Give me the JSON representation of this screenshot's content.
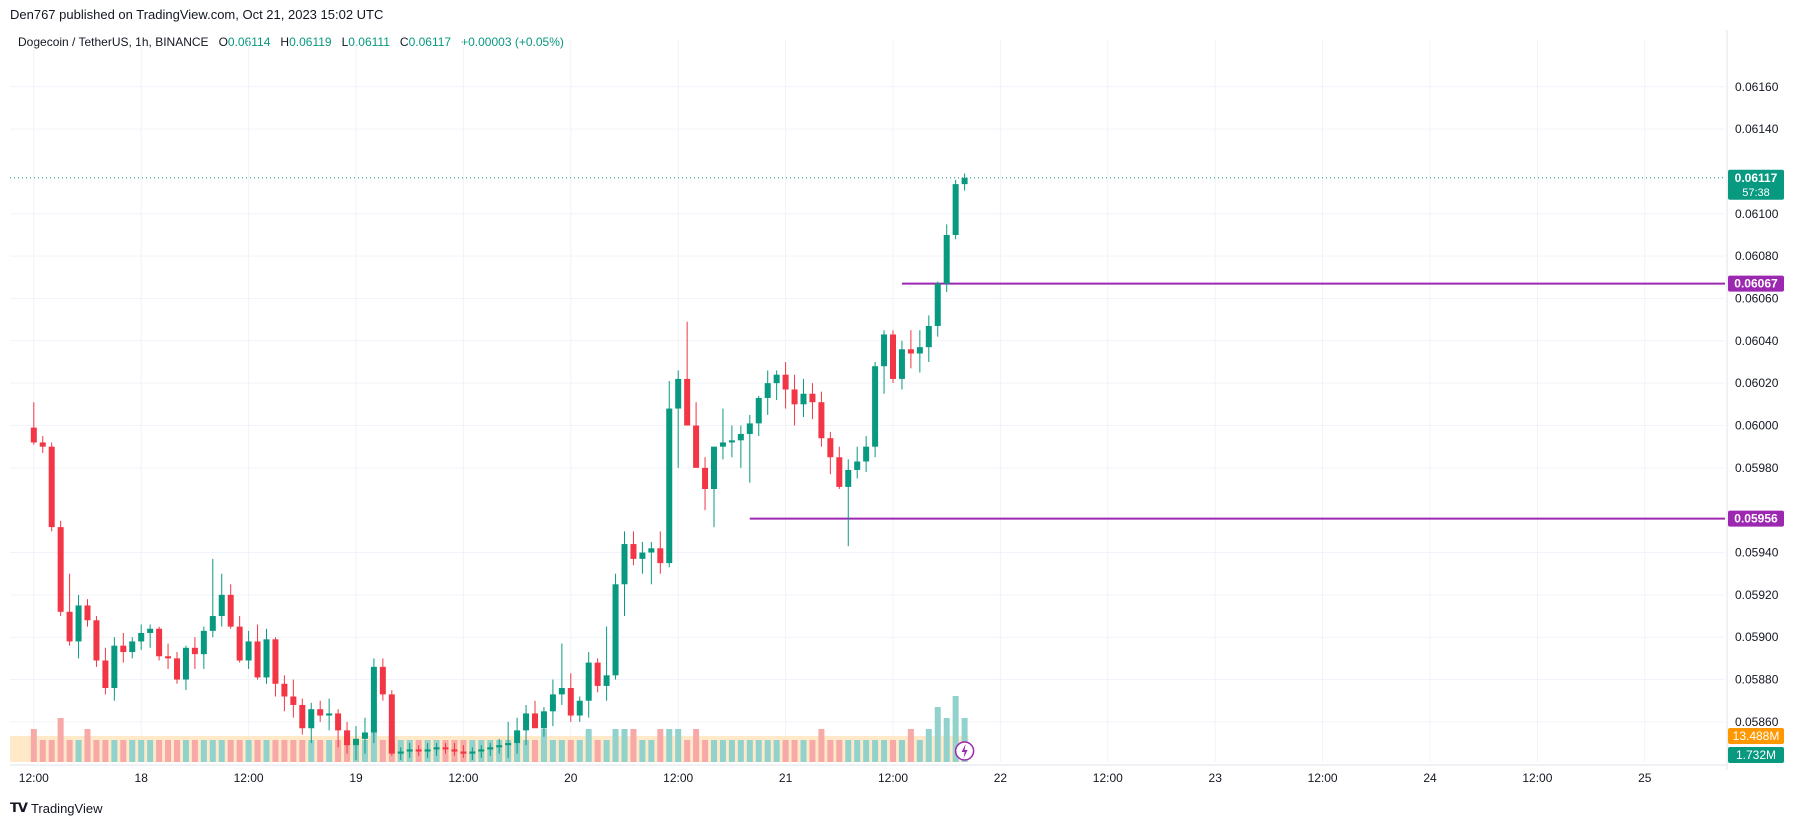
{
  "header": {
    "published": "Den767 published on TradingView.com, Oct 21, 2023 15:02 UTC"
  },
  "legend": {
    "symbol": "Dogecoin / TetherUS, 1h, BINANCE",
    "o_label": "O",
    "o_value": "0.06114",
    "h_label": "H",
    "h_value": "0.06119",
    "l_label": "L",
    "l_value": "0.06111",
    "c_label": "C",
    "c_value": "0.06117",
    "change": "+0.00003 (+0.05%)"
  },
  "footer": {
    "brand": "TradingView"
  },
  "colors": {
    "up": "#089981",
    "down": "#f23645",
    "up_vol": "#92d2cc",
    "down_vol": "#f7a9a7",
    "level": "#9c27b0",
    "grid": "#f0f3fa",
    "axis_text": "#131722",
    "vol_ma": "#ff9800",
    "last_price_bg": "#089981"
  },
  "chart_data": {
    "type": "candlestick",
    "title": "Dogecoin / TetherUS, 1h, BINANCE",
    "y_range": [
      0.05842,
      0.06175
    ],
    "y_ticks": [
      "0.06160",
      "0.06140",
      "0.06100",
      "0.06080",
      "0.06060",
      "0.06040",
      "0.06020",
      "0.06000",
      "0.05980",
      "0.05940",
      "0.05920",
      "0.05900",
      "0.05880",
      "0.05860"
    ],
    "y_tick_values": [
      0.0616,
      0.0614,
      0.061,
      0.0608,
      0.0606,
      0.0604,
      0.0602,
      0.06,
      0.0598,
      0.0594,
      0.0592,
      0.059,
      0.0588,
      0.0586
    ],
    "x_range_hours": [
      0,
      240
    ],
    "x_ticks": [
      {
        "label": "12:00",
        "h": 12
      },
      {
        "label": "18",
        "h": 24
      },
      {
        "label": "12:00",
        "h": 36
      },
      {
        "label": "19",
        "h": 48
      },
      {
        "label": "12:00",
        "h": 60
      },
      {
        "label": "20",
        "h": 72
      },
      {
        "label": "12:00",
        "h": 84
      },
      {
        "label": "21",
        "h": 96
      },
      {
        "label": "12:00",
        "h": 108
      },
      {
        "label": "22",
        "h": 120
      },
      {
        "label": "12:00",
        "h": 132
      },
      {
        "label": "23",
        "h": 144
      },
      {
        "label": "12:00",
        "h": 156
      },
      {
        "label": "24",
        "h": 168
      },
      {
        "label": "12:00",
        "h": 180
      },
      {
        "label": "25",
        "h": 192
      }
    ],
    "first_candle_hour": 12.0,
    "candles": [
      [
        0.05999,
        0.06011,
        0.05991,
        0.05992
      ],
      [
        0.05992,
        0.05995,
        0.05987,
        0.0599
      ],
      [
        0.0599,
        0.05992,
        0.0595,
        0.05952
      ],
      [
        0.05952,
        0.05955,
        0.0591,
        0.05912
      ],
      [
        0.05912,
        0.0593,
        0.05896,
        0.05898
      ],
      [
        0.05898,
        0.0592,
        0.0589,
        0.05915
      ],
      [
        0.05915,
        0.05918,
        0.05905,
        0.05908
      ],
      [
        0.05908,
        0.0591,
        0.05886,
        0.05889
      ],
      [
        0.05889,
        0.05895,
        0.05873,
        0.05876
      ],
      [
        0.05876,
        0.059,
        0.0587,
        0.05896
      ],
      [
        0.05896,
        0.05902,
        0.05888,
        0.05893
      ],
      [
        0.05893,
        0.059,
        0.0589,
        0.05898
      ],
      [
        0.05898,
        0.05906,
        0.05894,
        0.05902
      ],
      [
        0.05902,
        0.05906,
        0.05895,
        0.05904
      ],
      [
        0.05904,
        0.05905,
        0.05889,
        0.05891
      ],
      [
        0.05891,
        0.05897,
        0.05885,
        0.0589
      ],
      [
        0.0589,
        0.05893,
        0.05878,
        0.0588
      ],
      [
        0.0588,
        0.05896,
        0.05875,
        0.05895
      ],
      [
        0.05895,
        0.059,
        0.05885,
        0.05892
      ],
      [
        0.05892,
        0.05905,
        0.05885,
        0.05903
      ],
      [
        0.05903,
        0.05937,
        0.059,
        0.0591
      ],
      [
        0.0591,
        0.0593,
        0.05905,
        0.0592
      ],
      [
        0.0592,
        0.05925,
        0.05904,
        0.05905
      ],
      [
        0.05905,
        0.0591,
        0.05888,
        0.05889
      ],
      [
        0.05889,
        0.05903,
        0.05885,
        0.05898
      ],
      [
        0.05898,
        0.05906,
        0.0588,
        0.05881
      ],
      [
        0.05881,
        0.05904,
        0.05878,
        0.05899
      ],
      [
        0.05899,
        0.059,
        0.05872,
        0.05878
      ],
      [
        0.05878,
        0.05882,
        0.05865,
        0.05872
      ],
      [
        0.05872,
        0.0588,
        0.05862,
        0.05868
      ],
      [
        0.05868,
        0.05871,
        0.05854,
        0.05857
      ],
      [
        0.05857,
        0.05869,
        0.0585,
        0.05866
      ],
      [
        0.05866,
        0.0587,
        0.0586,
        0.05863
      ],
      [
        0.05863,
        0.05871,
        0.05856,
        0.05864
      ],
      [
        0.05864,
        0.05866,
        0.05848,
        0.05856
      ],
      [
        0.05856,
        0.0586,
        0.05845,
        0.05849
      ],
      [
        0.05849,
        0.05858,
        0.05842,
        0.05852
      ],
      [
        0.05852,
        0.05862,
        0.05845,
        0.05855
      ],
      [
        0.05855,
        0.0589,
        0.0585,
        0.05886
      ],
      [
        0.05886,
        0.0589,
        0.0587,
        0.05873
      ],
      [
        0.05873,
        0.05875,
        0.05844,
        0.05845
      ],
      [
        0.05845,
        0.05848,
        0.05842,
        0.05846
      ],
      [
        0.05846,
        0.0585,
        0.05843,
        0.05847
      ],
      [
        0.05847,
        0.05849,
        0.05844,
        0.05846
      ],
      [
        0.05846,
        0.0585,
        0.05843,
        0.05847
      ],
      [
        0.05847,
        0.0585,
        0.05844,
        0.05848
      ],
      [
        0.05848,
        0.0585,
        0.05845,
        0.05847
      ],
      [
        0.05847,
        0.0585,
        0.05844,
        0.05846
      ],
      [
        0.05846,
        0.05849,
        0.05843,
        0.05845
      ],
      [
        0.05845,
        0.05848,
        0.05842,
        0.05846
      ],
      [
        0.05846,
        0.05849,
        0.05843,
        0.05847
      ],
      [
        0.05847,
        0.0585,
        0.05844,
        0.05848
      ],
      [
        0.05848,
        0.05852,
        0.05845,
        0.05849
      ],
      [
        0.05849,
        0.0586,
        0.05843,
        0.0585
      ],
      [
        0.0585,
        0.05862,
        0.05845,
        0.05856
      ],
      [
        0.05856,
        0.05868,
        0.05849,
        0.05864
      ],
      [
        0.05864,
        0.0587,
        0.05858,
        0.05857
      ],
      [
        0.05857,
        0.05867,
        0.05853,
        0.05865
      ],
      [
        0.05865,
        0.0588,
        0.05858,
        0.05873
      ],
      [
        0.05873,
        0.05897,
        0.05868,
        0.05876
      ],
      [
        0.05876,
        0.05883,
        0.0586,
        0.05863
      ],
      [
        0.05863,
        0.05872,
        0.0586,
        0.0587
      ],
      [
        0.0587,
        0.05893,
        0.05862,
        0.05888
      ],
      [
        0.05888,
        0.0589,
        0.05874,
        0.05877
      ],
      [
        0.05877,
        0.05905,
        0.0587,
        0.05882
      ],
      [
        0.05882,
        0.0593,
        0.0588,
        0.05925
      ],
      [
        0.05925,
        0.0595,
        0.0591,
        0.05944
      ],
      [
        0.05944,
        0.0595,
        0.05934,
        0.05937
      ],
      [
        0.05937,
        0.05945,
        0.0593,
        0.0594
      ],
      [
        0.0594,
        0.05945,
        0.05925,
        0.05942
      ],
      [
        0.05942,
        0.0595,
        0.0593,
        0.05935
      ],
      [
        0.05935,
        0.06021,
        0.05933,
        0.06008
      ],
      [
        0.06008,
        0.06026,
        0.0598,
        0.06022
      ],
      [
        0.06022,
        0.06049,
        0.06,
        0.06
      ],
      [
        0.06,
        0.06011,
        0.0598,
        0.0598
      ],
      [
        0.0598,
        0.05985,
        0.0596,
        0.0597
      ],
      [
        0.0597,
        0.0599,
        0.05952,
        0.0599
      ],
      [
        0.0599,
        0.06008,
        0.05984,
        0.05992
      ],
      [
        0.05992,
        0.06,
        0.05985,
        0.05993
      ],
      [
        0.05993,
        0.06,
        0.0598,
        0.05996
      ],
      [
        0.05996,
        0.06005,
        0.05973,
        0.06001
      ],
      [
        0.06001,
        0.06014,
        0.05995,
        0.06013
      ],
      [
        0.06013,
        0.06026,
        0.06005,
        0.0602
      ],
      [
        0.0602,
        0.06026,
        0.06012,
        0.06024
      ],
      [
        0.06024,
        0.0603,
        0.06008,
        0.06017
      ],
      [
        0.06017,
        0.06024,
        0.06,
        0.0601
      ],
      [
        0.0601,
        0.06022,
        0.06004,
        0.06015
      ],
      [
        0.06015,
        0.0602,
        0.06003,
        0.06011
      ],
      [
        0.06011,
        0.06016,
        0.0599,
        0.05994
      ],
      [
        0.05994,
        0.05997,
        0.05977,
        0.05985
      ],
      [
        0.05985,
        0.0599,
        0.0597,
        0.05971
      ],
      [
        0.05971,
        0.05984,
        0.05943,
        0.05979
      ],
      [
        0.05979,
        0.0599,
        0.05975,
        0.05983
      ],
      [
        0.05983,
        0.05995,
        0.05978,
        0.0599
      ],
      [
        0.0599,
        0.0603,
        0.05985,
        0.06028
      ],
      [
        0.06028,
        0.06045,
        0.06015,
        0.06043
      ],
      [
        0.06043,
        0.06045,
        0.0602,
        0.06022
      ],
      [
        0.06022,
        0.0604,
        0.06017,
        0.06036
      ],
      [
        0.06036,
        0.06045,
        0.06027,
        0.06034
      ],
      [
        0.06034,
        0.06045,
        0.06025,
        0.06037
      ],
      [
        0.06037,
        0.06052,
        0.0603,
        0.06047
      ],
      [
        0.06047,
        0.06068,
        0.06042,
        0.06067
      ],
      [
        0.06067,
        0.06095,
        0.06063,
        0.0609
      ],
      [
        0.0609,
        0.06116,
        0.06088,
        0.06114
      ],
      [
        0.06114,
        0.06119,
        0.06111,
        0.06117
      ]
    ],
    "volumes": [
      3,
      2,
      2,
      4,
      2,
      2,
      3,
      2,
      2,
      2,
      2,
      2,
      2,
      2,
      2,
      2,
      2,
      2,
      2,
      2,
      2,
      2,
      2,
      2,
      2,
      2,
      2,
      2,
      2,
      2,
      2,
      2,
      2,
      2,
      2,
      2,
      2,
      2,
      3,
      2,
      2,
      2,
      2,
      2,
      2,
      2,
      2,
      2,
      2,
      2,
      2,
      2,
      2,
      2,
      2,
      2,
      2,
      3,
      2,
      2,
      2,
      2,
      3,
      2,
      2,
      3,
      3,
      3,
      2,
      2,
      3,
      3,
      3,
      2,
      3,
      2,
      2,
      2,
      2,
      2,
      2,
      2,
      2,
      2,
      2,
      2,
      2,
      2,
      3,
      2,
      2,
      2,
      2,
      2,
      2,
      2,
      2,
      2,
      3,
      2,
      3,
      5,
      4,
      6,
      4
    ],
    "volume_units": "relative",
    "levels": [
      {
        "value": 0.06067,
        "label": "0.06067"
      },
      {
        "value": 0.05956,
        "label": "0.05956"
      }
    ],
    "last_price": "0.06117",
    "countdown": "57:38",
    "volume_ma_label": "13.488M",
    "volume_label": "1.732M"
  }
}
